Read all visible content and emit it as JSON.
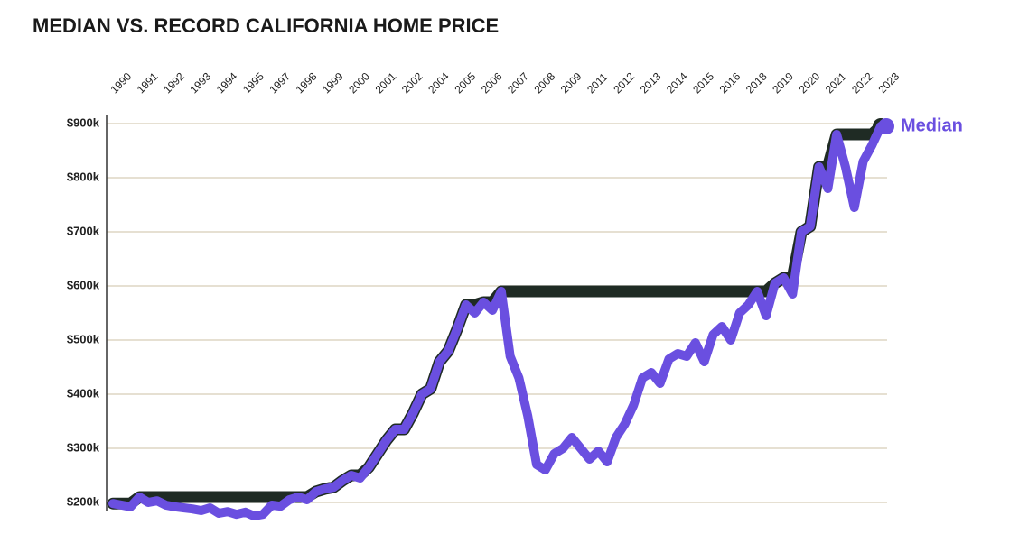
{
  "chart_data": {
    "type": "line",
    "title": "MEDIAN VS. RECORD CALIFORNIA HOME PRICE",
    "categories": [
      "1990",
      null,
      null,
      "1991",
      null,
      null,
      "1992",
      null,
      null,
      "1993",
      null,
      null,
      "1994",
      null,
      null,
      "1995",
      null,
      null,
      "1997",
      null,
      null,
      "1998",
      null,
      null,
      "1999",
      null,
      null,
      "2000",
      null,
      null,
      "2001",
      null,
      null,
      "2002",
      null,
      null,
      "2004",
      null,
      null,
      "2005",
      null,
      null,
      "2006",
      null,
      null,
      "2007",
      null,
      null,
      "2008",
      null,
      null,
      "2009",
      null,
      null,
      "2011",
      null,
      null,
      "2012",
      null,
      null,
      "2013",
      null,
      null,
      "2014",
      null,
      null,
      "2015",
      null,
      null,
      "2016",
      null,
      null,
      "2018",
      null,
      null,
      "2019",
      null,
      null,
      "2020",
      null,
      null,
      "2021",
      null,
      null,
      "2022",
      null,
      null,
      "2023"
    ],
    "series": [
      {
        "color": "#1f2b24",
        "values": [
          198,
          198,
          198,
          210,
          210,
          210,
          210,
          210,
          210,
          210,
          210,
          210,
          210,
          210,
          210,
          210,
          210,
          210,
          210,
          210,
          210,
          210,
          210,
          220,
          225,
          228,
          240,
          250,
          250,
          265,
          290,
          315,
          335,
          335,
          365,
          400,
          410,
          460,
          480,
          520,
          565,
          565,
          570,
          570,
          590,
          590,
          590,
          590,
          590,
          590,
          590,
          590,
          590,
          590,
          590,
          590,
          590,
          590,
          590,
          590,
          590,
          590,
          590,
          590,
          590,
          590,
          590,
          590,
          590,
          590,
          590,
          590,
          590,
          590,
          590,
          605,
          615,
          615,
          700,
          710,
          820,
          820,
          880,
          880,
          880,
          880,
          880,
          895
        ]
      },
      {
        "name": "Median",
        "color": "#6a4fe0",
        "values": [
          198,
          195,
          192,
          210,
          200,
          203,
          195,
          192,
          190,
          188,
          185,
          190,
          180,
          183,
          178,
          182,
          175,
          178,
          195,
          193,
          205,
          210,
          205,
          220,
          225,
          228,
          240,
          250,
          245,
          265,
          290,
          315,
          335,
          335,
          365,
          400,
          410,
          460,
          480,
          520,
          565,
          550,
          570,
          555,
          590,
          470,
          430,
          360,
          270,
          260,
          290,
          300,
          320,
          300,
          280,
          295,
          275,
          320,
          345,
          380,
          430,
          440,
          420,
          465,
          475,
          470,
          495,
          460,
          510,
          525,
          500,
          550,
          565,
          590,
          545,
          605,
          615,
          585,
          700,
          710,
          820,
          780,
          880,
          820,
          745,
          830,
          860,
          895
        ]
      }
    ],
    "ylim": [
      190,
      910
    ],
    "yticks": [
      {
        "value": 200,
        "label": "$200k"
      },
      {
        "value": 300,
        "label": "$300k"
      },
      {
        "value": 400,
        "label": "$400k"
      },
      {
        "value": 500,
        "label": "$500k"
      },
      {
        "value": 600,
        "label": "$600k"
      },
      {
        "value": 700,
        "label": "$700k"
      },
      {
        "value": 800,
        "label": "$800k"
      },
      {
        "value": 900,
        "label": "$900k"
      }
    ],
    "grid": true
  }
}
